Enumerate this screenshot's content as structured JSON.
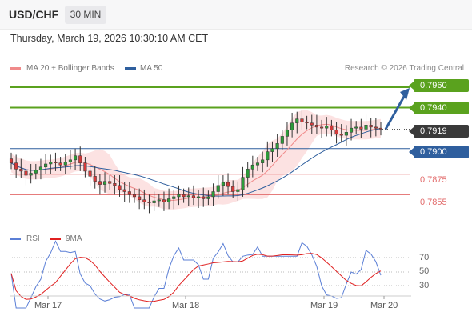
{
  "header": {
    "symbol": "USD/CHF",
    "timeframe": "30 MIN"
  },
  "datetime": "Thursday, March 19, 2026 10:30:10 AM CET",
  "legend": {
    "bollinger": {
      "label": "MA 20 + Bollinger Bands",
      "color": "#f08a8a"
    },
    "ma50": {
      "label": "MA 50",
      "color": "#2f5f9e"
    },
    "source": "Research © 2026 Trading Central"
  },
  "levels": [
    {
      "value": "0.7960",
      "color": "#5aa21e",
      "kind": "target",
      "badge": true
    },
    {
      "value": "0.7940",
      "color": "#5aa21e",
      "kind": "target",
      "badge": true
    },
    {
      "value": "0.7919",
      "color": "#3a3a3a",
      "kind": "last",
      "badge": true
    },
    {
      "value": "0.7900",
      "color": "#2f5f9e",
      "kind": "pivot",
      "badge": true
    },
    {
      "value": "0.7875",
      "color": "#e26a6a",
      "kind": "support",
      "badge": false
    },
    {
      "value": "0.7855",
      "color": "#e26a6a",
      "kind": "support",
      "badge": false
    }
  ],
  "rsi_panel": {
    "legend": [
      {
        "label": "RSI",
        "color": "#5b7fd6"
      },
      {
        "label": "9MA",
        "color": "#e02020"
      }
    ],
    "ticks": [
      "70",
      "50",
      "30"
    ]
  },
  "xaxis": {
    "ticks": [
      "Mar 17",
      "Mar 18",
      "Mar 19",
      "Mar 20"
    ]
  },
  "chart_data": {
    "type": "candlestick",
    "title": "USD/CHF",
    "timeframe": "30 MIN",
    "ylim": [
      0.7842,
      0.7967
    ],
    "horizontal_levels": [
      0.796,
      0.794,
      0.7919,
      0.79,
      0.7875,
      0.7855
    ],
    "candle_closes_approx": [
      0.7886,
      0.788,
      0.7878,
      0.7874,
      0.7876,
      0.7879,
      0.7882,
      0.7885,
      0.7887,
      0.7886,
      0.7884,
      0.7887,
      0.7889,
      0.7893,
      0.7886,
      0.7878,
      0.7873,
      0.7868,
      0.7865,
      0.7868,
      0.7866,
      0.7864,
      0.786,
      0.7858,
      0.7855,
      0.7853,
      0.785,
      0.7848,
      0.7847,
      0.7849,
      0.785,
      0.7848,
      0.7851,
      0.7853,
      0.7855,
      0.7853,
      0.7854,
      0.7852,
      0.7853,
      0.7851,
      0.7853,
      0.7858,
      0.7864,
      0.7867,
      0.7863,
      0.7858,
      0.786,
      0.7872,
      0.788,
      0.7884,
      0.7886,
      0.7889,
      0.7897,
      0.79,
      0.7905,
      0.7912,
      0.7918,
      0.7925,
      0.7929,
      0.7926,
      0.7925,
      0.7923,
      0.7921,
      0.792,
      0.7922,
      0.7918,
      0.7914,
      0.7913,
      0.7916,
      0.792,
      0.7921,
      0.7919,
      0.7923,
      0.7921,
      0.792,
      0.7919
    ],
    "projection_arrow": {
      "from": 0.7919,
      "to": 0.796
    }
  }
}
